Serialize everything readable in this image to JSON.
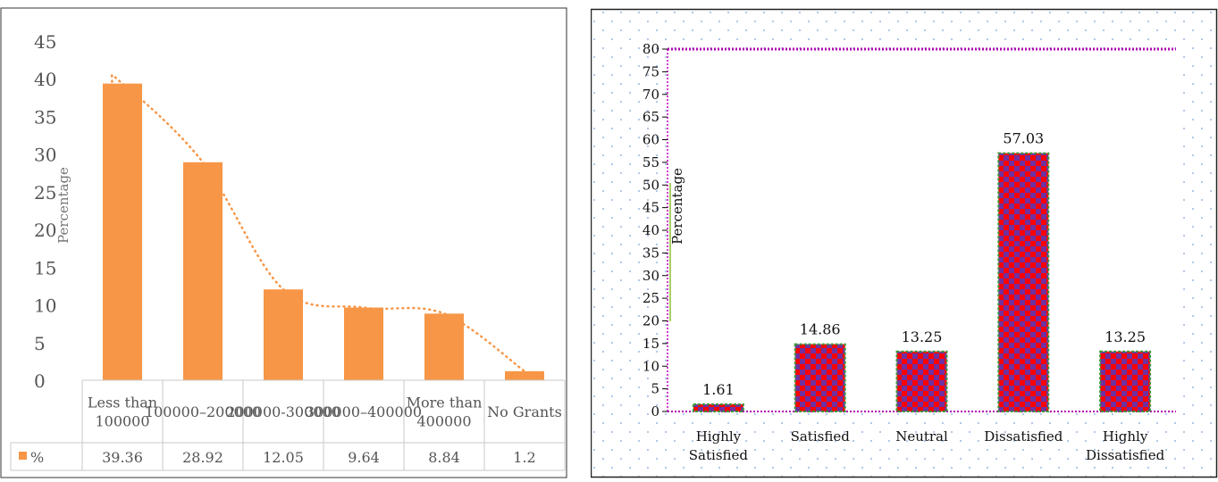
{
  "chart_data": [
    {
      "type": "bar",
      "title": "",
      "xlabel": "",
      "ylabel": "Percentage",
      "ylim": [
        0,
        45
      ],
      "yticks": [
        0,
        5,
        10,
        15,
        20,
        25,
        30,
        35,
        40,
        45
      ],
      "categories": [
        "Less than 100000",
        "100000–200000",
        "200000-300000",
        "300000–400000",
        "More than 400000",
        "No Grants"
      ],
      "series": [
        {
          "name": "%",
          "values": [
            39.36,
            28.92,
            12.05,
            9.64,
            8.84,
            1.2
          ],
          "color": "#f79646"
        }
      ],
      "trendline": {
        "style": "dotted",
        "color": "#f79646"
      },
      "data_table": true,
      "grid": false
    },
    {
      "type": "bar",
      "title": "",
      "xlabel": "",
      "ylabel": "Percentage",
      "ylim": [
        0,
        80
      ],
      "yticks": [
        0,
        5,
        10,
        15,
        20,
        25,
        30,
        35,
        40,
        45,
        50,
        55,
        60,
        65,
        70,
        75,
        80
      ],
      "categories": [
        "Highly Satisfied",
        "Satisfied",
        "Neutral",
        "Dissatisfied",
        "Highly Dissatisfied"
      ],
      "series": [
        {
          "values": [
            1.61,
            14.86,
            13.25,
            57.03,
            13.25
          ],
          "color": "#ff0000"
        }
      ],
      "data_labels": [
        "1.61",
        "14.86",
        "13.25",
        "57.03",
        "13.25"
      ],
      "grid": false
    }
  ]
}
